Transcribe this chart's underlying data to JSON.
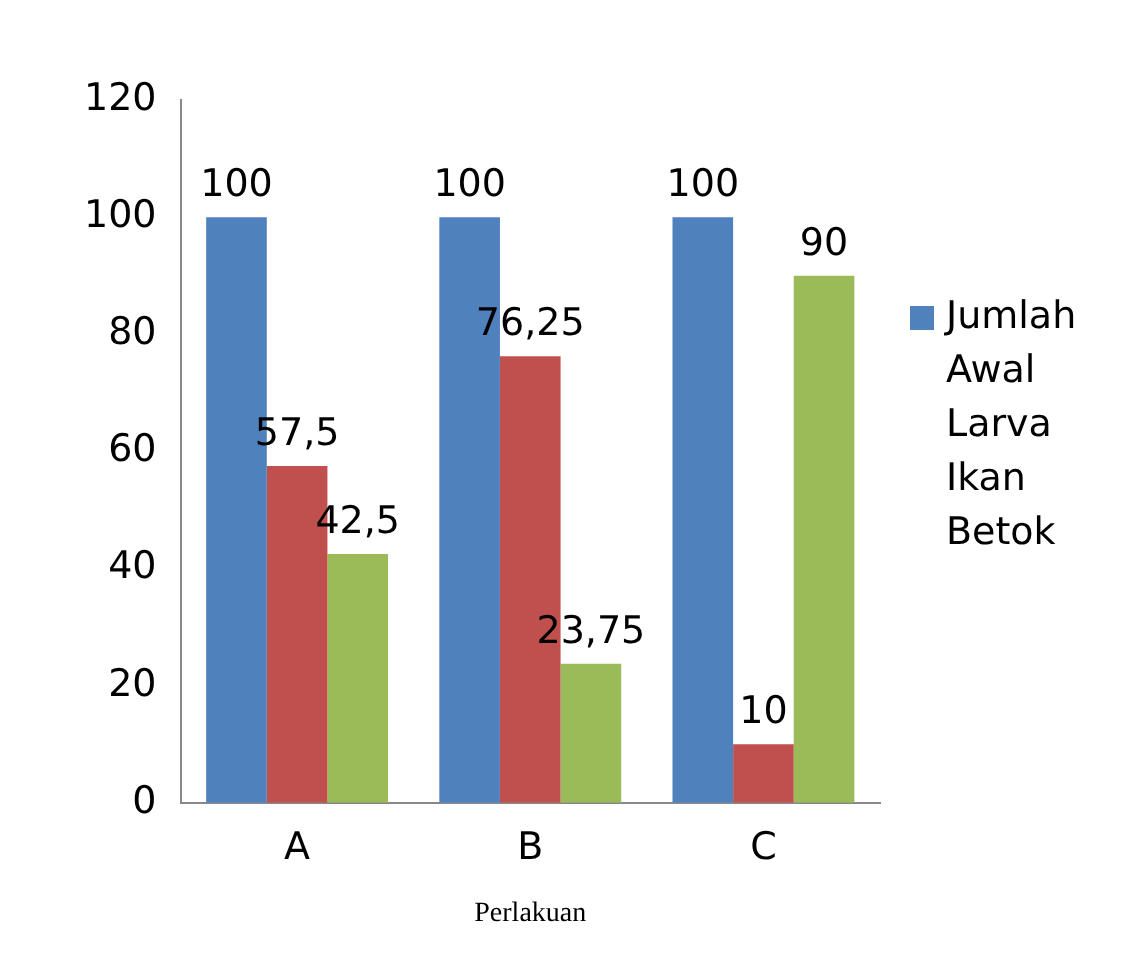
{
  "chart_data": {
    "type": "bar",
    "xlabel": "Perlakuan",
    "categories": [
      "A",
      "B",
      "C"
    ],
    "series": [
      {
        "name": "Jumlah Awal Larva Ikan Betok",
        "color": "#4f81bd",
        "values": [
          100,
          100,
          100
        ],
        "value_labels": [
          "100",
          "100",
          "100"
        ]
      },
      {
        "color": "#c0504d",
        "values": [
          57.5,
          76.25,
          10
        ],
        "value_labels": [
          "57,5",
          "76,25",
          "10"
        ]
      },
      {
        "color": "#9bbb59",
        "values": [
          42.5,
          23.75,
          90
        ],
        "value_labels": [
          "42,5",
          "23,75",
          "90"
        ]
      }
    ],
    "ylim": [
      0,
      120
    ],
    "yticks": [
      0,
      20,
      40,
      60,
      80,
      100,
      120
    ],
    "grid": false,
    "legend": "right"
  }
}
